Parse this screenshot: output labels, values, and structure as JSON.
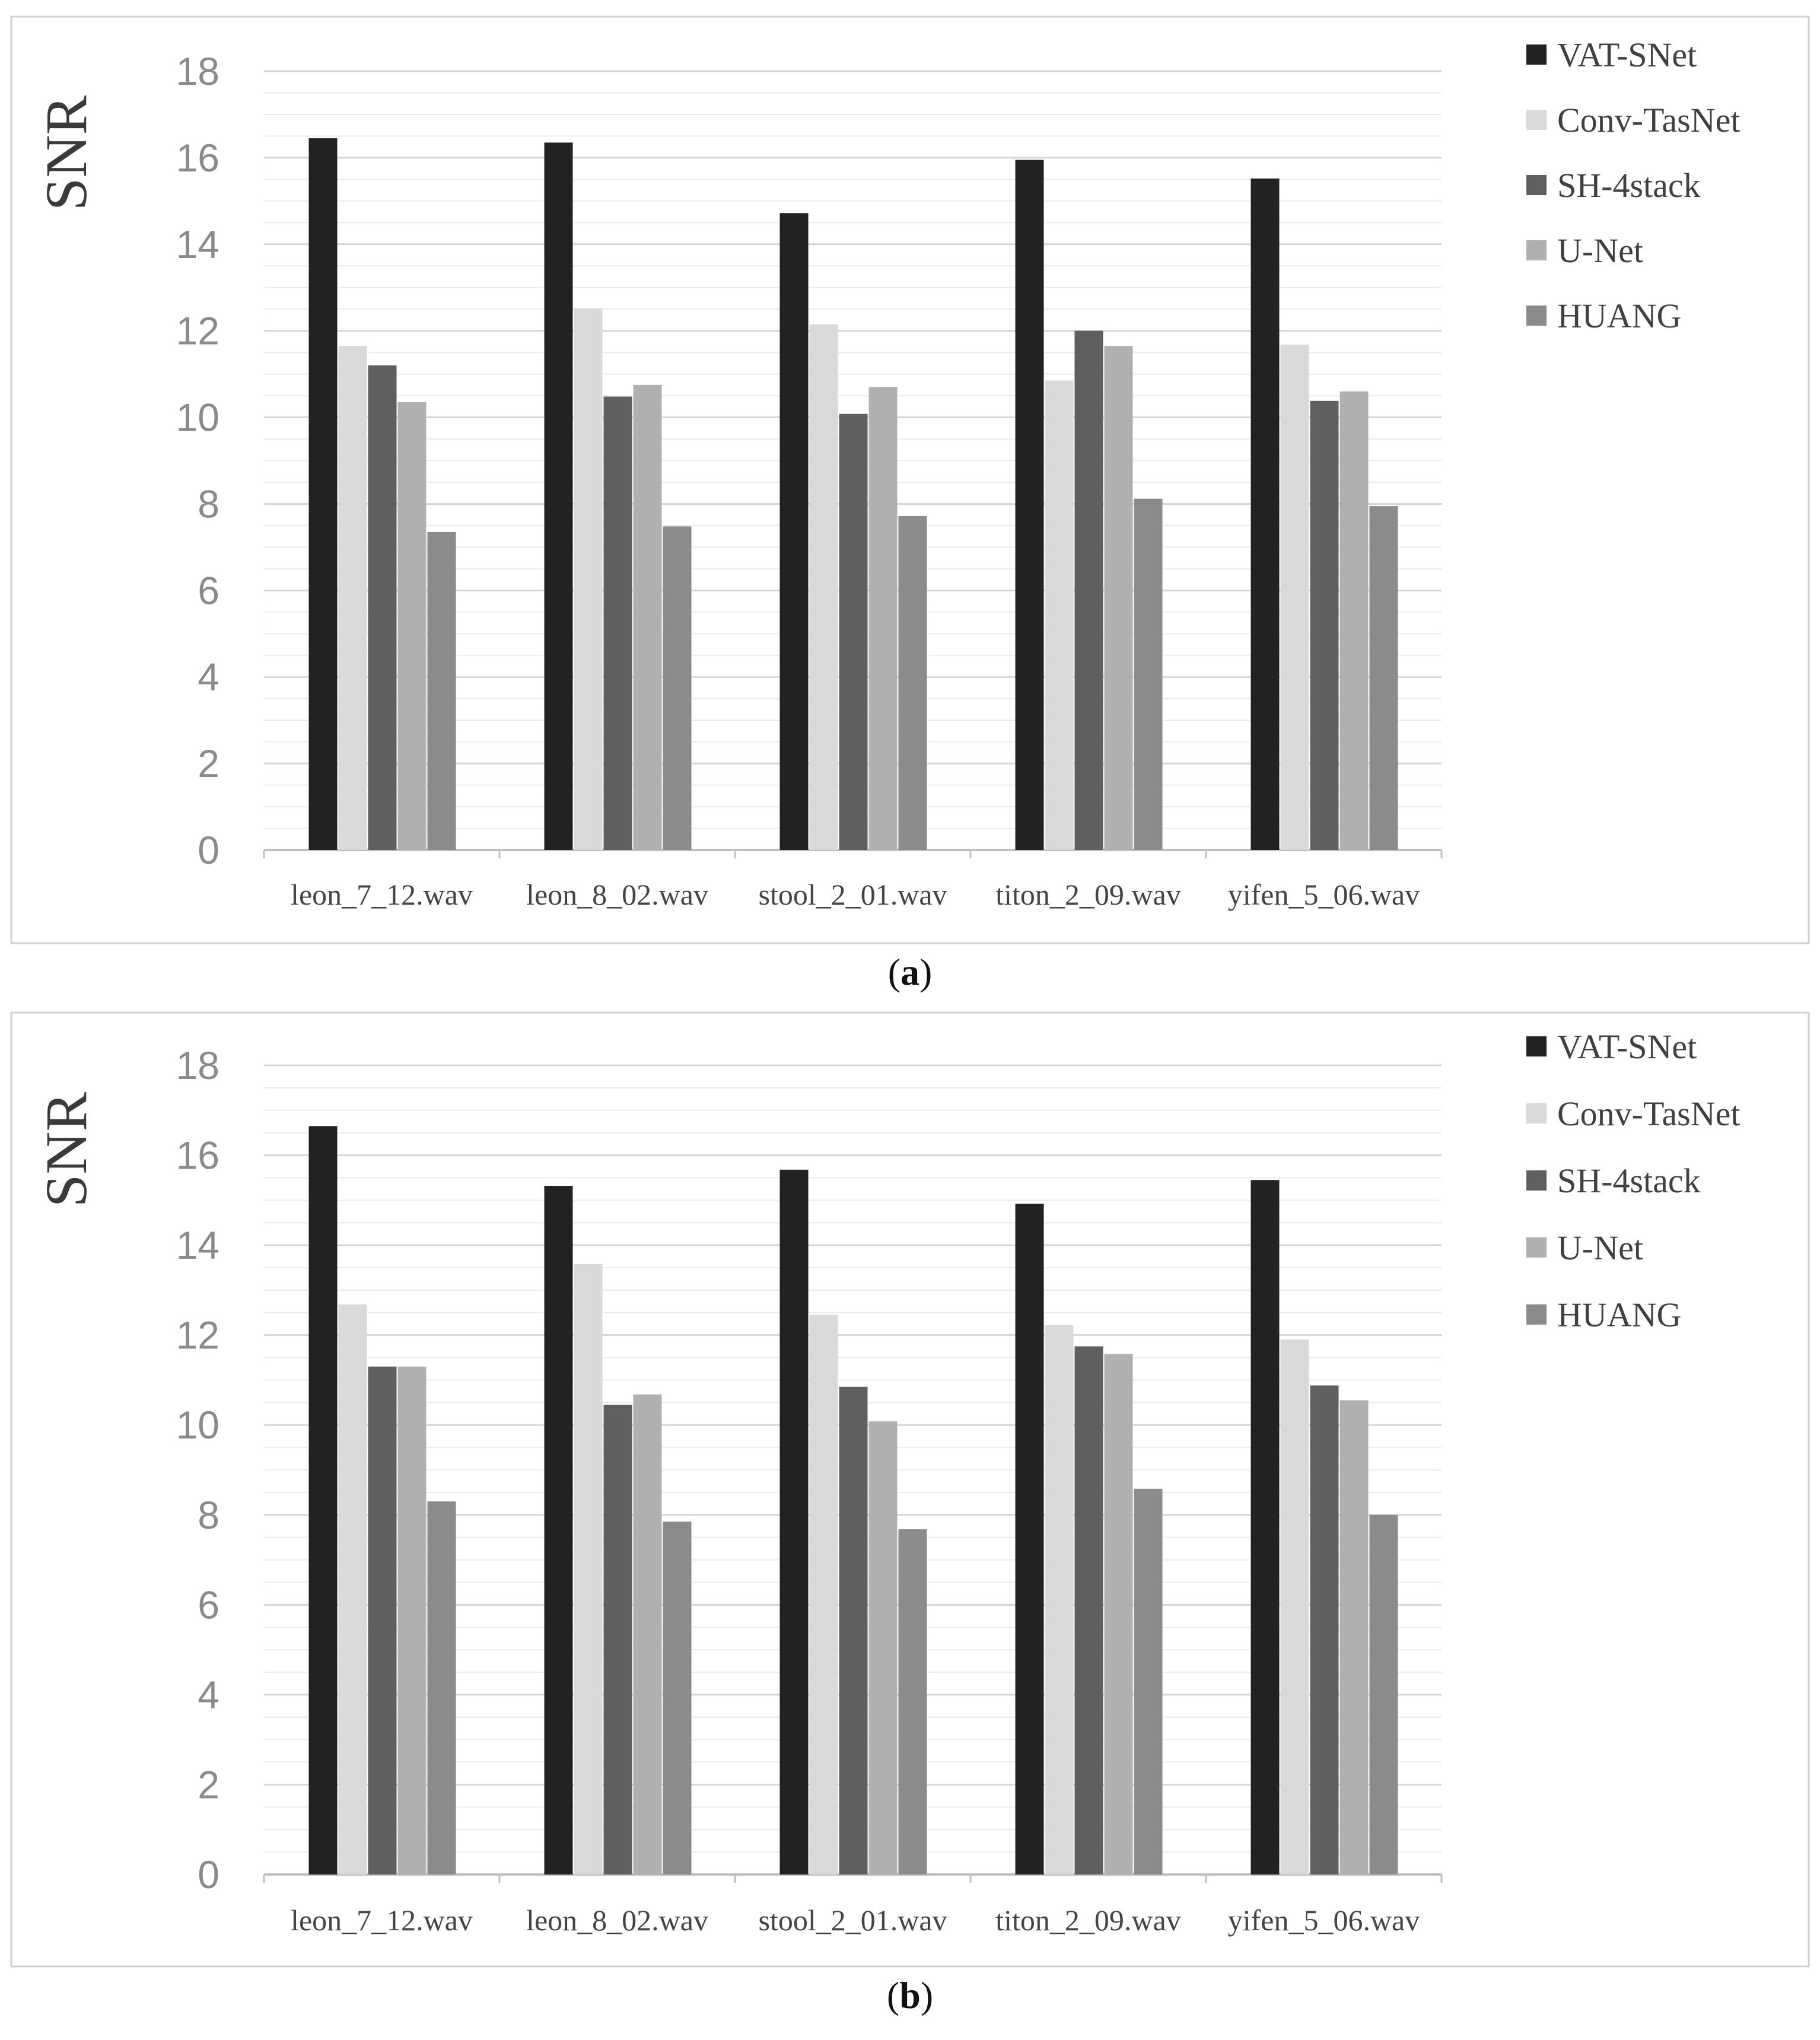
{
  "chart_data": [
    {
      "type": "bar",
      "panel_label": "a",
      "ylabel": "SNR",
      "ylim": [
        0,
        18
      ],
      "yticks": [
        "0",
        "2",
        "4",
        "6",
        "8",
        "10",
        "12",
        "14",
        "16",
        "18"
      ],
      "categories": [
        "leon_7_12.wav",
        "leon_8_02.wav",
        "stool_2_01.wav",
        "titon_2_09.wav",
        "yifen_5_06.wav"
      ],
      "legend_position": "top-right",
      "series": [
        {
          "name": "VAT-SNet",
          "color": "#222222",
          "values": [
            16.45,
            16.35,
            14.72,
            15.95,
            15.52
          ]
        },
        {
          "name": "Conv-TasNet",
          "color": "#d9d9d9",
          "values": [
            11.65,
            12.52,
            12.15,
            10.85,
            11.68
          ]
        },
        {
          "name": "SH-4stack",
          "color": "#5f5f5f",
          "values": [
            11.2,
            10.48,
            10.08,
            12.0,
            10.38
          ]
        },
        {
          "name": "U-Net",
          "color": "#b0b0b0",
          "values": [
            10.35,
            10.75,
            10.7,
            11.65,
            10.6
          ]
        },
        {
          "name": "HUANG",
          "color": "#8b8b8b",
          "values": [
            7.35,
            7.48,
            7.72,
            8.12,
            7.95
          ]
        }
      ]
    },
    {
      "type": "bar",
      "panel_label": "b",
      "ylabel": "SNR",
      "ylim": [
        0,
        18
      ],
      "yticks": [
        "0",
        "2",
        "4",
        "6",
        "8",
        "10",
        "12",
        "14",
        "16",
        "18"
      ],
      "categories": [
        "leon_7_12.wav",
        "leon_8_02.wav",
        "stool_2_01.wav",
        "titon_2_09.wav",
        "yifen_5_06.wav"
      ],
      "legend_position": "top-right",
      "series": [
        {
          "name": "VAT-SNet",
          "color": "#222222",
          "values": [
            16.65,
            15.32,
            15.68,
            14.92,
            15.45
          ]
        },
        {
          "name": "Conv-TasNet",
          "color": "#d9d9d9",
          "values": [
            12.68,
            13.58,
            12.45,
            12.22,
            11.9
          ]
        },
        {
          "name": "SH-4stack",
          "color": "#5f5f5f",
          "values": [
            11.3,
            10.45,
            10.85,
            11.75,
            10.88
          ]
        },
        {
          "name": "U-Net",
          "color": "#b0b0b0",
          "values": [
            11.3,
            10.68,
            10.08,
            11.58,
            10.55
          ]
        },
        {
          "name": "HUANG",
          "color": "#8b8b8b",
          "values": [
            8.3,
            7.85,
            7.68,
            8.58,
            8.0
          ]
        }
      ]
    }
  ]
}
